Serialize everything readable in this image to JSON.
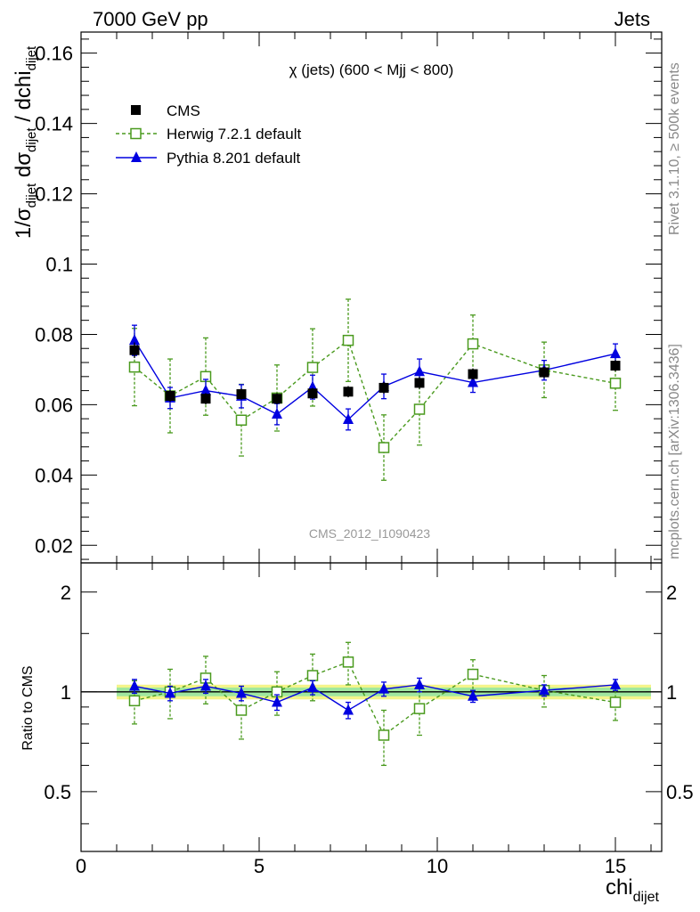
{
  "header": {
    "left": "7000 GeV pp",
    "right": "Jets"
  },
  "side_labels": {
    "rivet": "Rivet 3.1.10, ≥ 500k events",
    "mcplots": "mcplots.cern.ch [arXiv:1306.3436]"
  },
  "watermark": "CMS_2012_I1090423",
  "chart_data": {
    "type": "scatter",
    "title": "χ (jets) (600 < Mjj <  800)",
    "xlabel": {
      "main": "chi",
      "sub": "dijet"
    },
    "ylabel": "1/σ_dijet dσ_dijet / dchi_dijet",
    "ratio_ylabel": "Ratio to CMS",
    "xlim": [
      0,
      16.3
    ],
    "ylim": [
      0.015,
      0.166
    ],
    "ratio_ylim": [
      0.33,
      2.45
    ],
    "ratio_log_scale": true,
    "grid": false,
    "legend_position": "top-left",
    "x_ticks": [
      0,
      5,
      10,
      15
    ],
    "x_tick_labels": [
      "0",
      "5",
      "10",
      "15"
    ],
    "y_ticks": [
      0.02,
      0.04,
      0.06,
      0.08,
      0.1,
      0.12,
      0.14,
      0.16
    ],
    "y_tick_labels": [
      "0.02",
      "0.04",
      "0.06",
      "0.08",
      "0.1",
      "0.12",
      "0.14",
      "0.16"
    ],
    "ratio_ticks": [
      0.5,
      1,
      2
    ],
    "ratio_tick_labels": [
      "0.5",
      "1",
      "2"
    ],
    "x": [
      1.5,
      2.5,
      3.5,
      4.5,
      5.5,
      6.5,
      7.5,
      8.5,
      9.5,
      11,
      13,
      15
    ],
    "x_edges": [
      1,
      2,
      3,
      4,
      5,
      6,
      7,
      8,
      9,
      10,
      12,
      14,
      16
    ],
    "series": [
      {
        "name": "CMS",
        "color": "#000000",
        "marker": "filled-square",
        "values": [
          0.0755,
          0.0625,
          0.0617,
          0.063,
          0.0617,
          0.0632,
          0.0637,
          0.0648,
          0.0662,
          0.0687,
          0.0692,
          0.0711
        ],
        "errors": [
          0.0022,
          0.0017,
          0.0016,
          0.0016,
          0.0016,
          0.0016,
          0.0016,
          0.0017,
          0.0017,
          0.0016,
          0.0016,
          0.0016
        ],
        "ratio": [
          1,
          1,
          1,
          1,
          1,
          1,
          1,
          1,
          1,
          1,
          1,
          1
        ],
        "ratio_errors": [
          0.03,
          0.03,
          0.03,
          0.03,
          0.03,
          0.03,
          0.03,
          0.03,
          0.03,
          0.03,
          0.03,
          0.03
        ]
      },
      {
        "name": "Herwig 7.2.1 default",
        "color": "#4a9a1e",
        "marker": "open-square",
        "line": "dashed",
        "values": [
          0.0707,
          0.0625,
          0.068,
          0.0556,
          0.0619,
          0.0706,
          0.0783,
          0.0478,
          0.0587,
          0.0773,
          0.0699,
          0.0661
        ],
        "errors": [
          0.011,
          0.0105,
          0.011,
          0.0102,
          0.0094,
          0.011,
          0.0117,
          0.0093,
          0.0102,
          0.0082,
          0.0079,
          0.0077
        ],
        "ratio": [
          0.94,
          1.0,
          1.1,
          0.88,
          1.0,
          1.12,
          1.23,
          0.74,
          0.89,
          1.13,
          1.01,
          0.93
        ],
        "ratio_errors": [
          0.14,
          0.17,
          0.18,
          0.16,
          0.15,
          0.18,
          0.18,
          0.14,
          0.15,
          0.12,
          0.11,
          0.11
        ]
      },
      {
        "name": "Pythia 8.201 default",
        "color": "#0000e0",
        "marker": "filled-triangle",
        "line": "solid",
        "values": [
          0.0783,
          0.0619,
          0.064,
          0.0624,
          0.0573,
          0.065,
          0.0558,
          0.0652,
          0.0694,
          0.0663,
          0.0698,
          0.0745
        ],
        "errors": [
          0.0043,
          0.003,
          0.0032,
          0.0033,
          0.003,
          0.0034,
          0.003,
          0.0035,
          0.0036,
          0.0028,
          0.0028,
          0.0028
        ],
        "ratio": [
          1.04,
          0.99,
          1.04,
          0.99,
          0.93,
          1.03,
          0.88,
          1.02,
          1.05,
          0.97,
          1.01,
          1.05
        ],
        "ratio_errors": [
          0.05,
          0.05,
          0.05,
          0.05,
          0.05,
          0.05,
          0.05,
          0.05,
          0.05,
          0.04,
          0.04,
          0.04
        ]
      }
    ]
  }
}
